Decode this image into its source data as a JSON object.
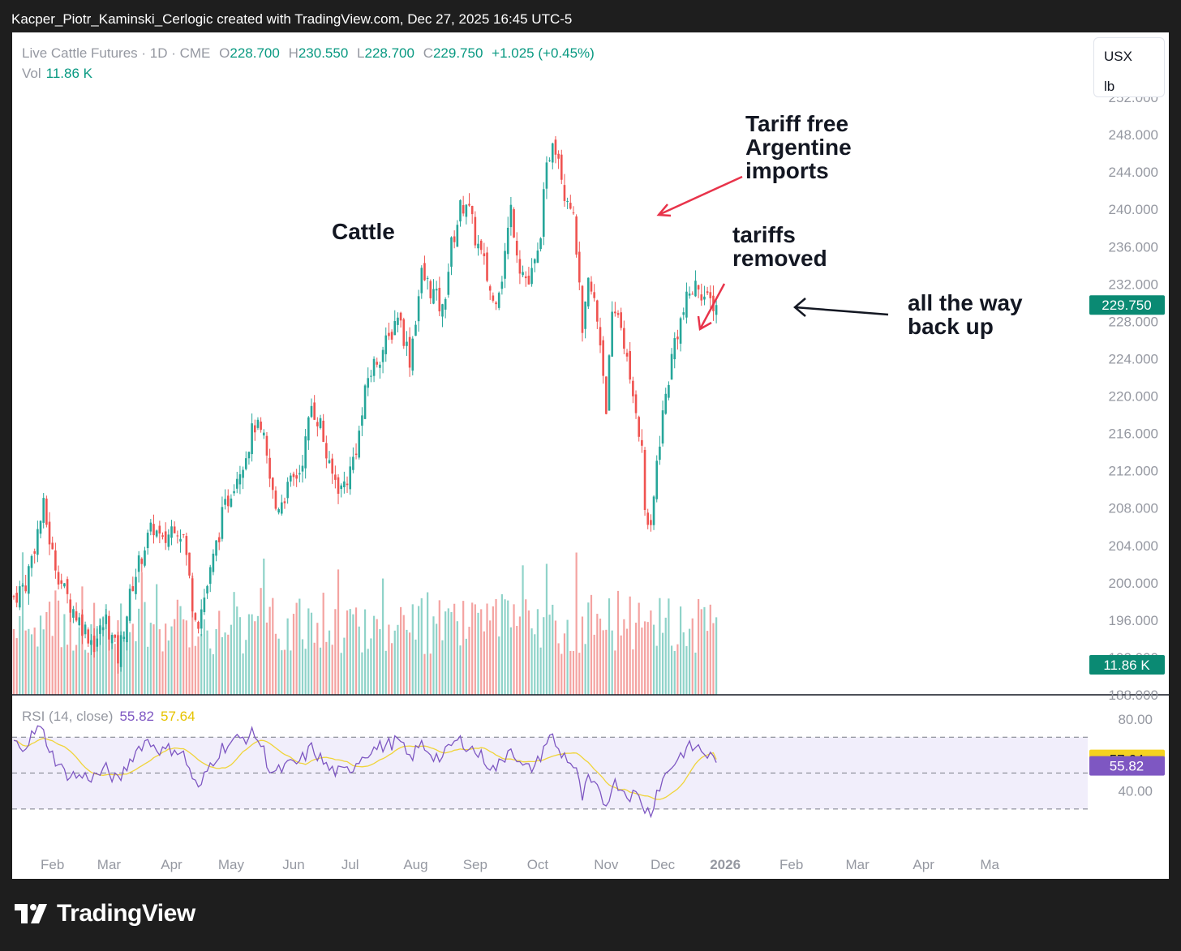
{
  "header_text": "Kacper_Piotr_Kaminski_Cerlogic created with TradingView.com, Dec 27, 2025 16:45 UTC-5",
  "legend": {
    "symbol": "Live Cattle Futures · 1D · CME",
    "o_label": "O",
    "o": "228.700",
    "h_label": "H",
    "h": "230.550",
    "l_label": "L",
    "l": "228.700",
    "c_label": "C",
    "c": "229.750",
    "change": "+1.025 (+0.45%)",
    "vol_label": "Vol",
    "vol": "11.86 K"
  },
  "unit_box": {
    "currency": "USX",
    "unit": "lb"
  },
  "price_axis": {
    "ticks": [
      "252.000",
      "248.000",
      "244.000",
      "240.000",
      "236.000",
      "232.000",
      "228.000",
      "224.000",
      "220.000",
      "216.000",
      "212.000",
      "208.000",
      "204.000",
      "200.000",
      "196.000",
      "192.000",
      "188.000"
    ],
    "last_price": "229.750",
    "last_volume": "11.86 K"
  },
  "rsi": {
    "label": "RSI (14, close)",
    "value": "55.82",
    "ma_value": "57.64",
    "ticks": [
      "80.00",
      "40.00"
    ]
  },
  "time_axis": [
    "Feb",
    "Mar",
    "Apr",
    "May",
    "Jun",
    "Jul",
    "Aug",
    "Sep",
    "Oct",
    "Nov",
    "Dec",
    "2026",
    "Feb",
    "Mar",
    "Apr",
    "Ma"
  ],
  "annotations": {
    "title": "Cattle",
    "argentine": [
      "Tariff free",
      "Argentine",
      "imports"
    ],
    "tariffs": [
      "tariffs",
      "removed"
    ],
    "backup": [
      "all the way",
      "back up"
    ]
  },
  "brand": "TradingView",
  "colors": {
    "up": "#26a69a",
    "down": "#ef5350",
    "rsi": "#7e57c2",
    "rsi_ma": "#f0d43a",
    "rsi_band": "#f1eefb",
    "arrow": "#e8334a"
  },
  "chart_data": {
    "type": "candlestick",
    "title": "Live Cattle Futures · 1D · CME",
    "ylim": [
      188,
      254
    ],
    "month_anchors": [
      {
        "label": "Feb",
        "day": 13
      },
      {
        "label": "Mar",
        "day": 32
      },
      {
        "label": "Apr",
        "day": 53
      },
      {
        "label": "May",
        "day": 73
      },
      {
        "label": "Jun",
        "day": 94
      },
      {
        "label": "Jul",
        "day": 113
      },
      {
        "label": "Aug",
        "day": 135
      },
      {
        "label": "Sep",
        "day": 155
      },
      {
        "label": "Oct",
        "day": 176
      },
      {
        "label": "Nov",
        "day": 199
      },
      {
        "label": "Dec",
        "day": 218
      },
      {
        "label": "2026",
        "day": 239
      }
    ],
    "close_path": [
      [
        0,
        198.5
      ],
      [
        4,
        200
      ],
      [
        8,
        205.5
      ],
      [
        10,
        208
      ],
      [
        13,
        203
      ],
      [
        17,
        199
      ],
      [
        22,
        196
      ],
      [
        27,
        193.5
      ],
      [
        31,
        196
      ],
      [
        35,
        192
      ],
      [
        40,
        200
      ],
      [
        44,
        204
      ],
      [
        47,
        206
      ],
      [
        50,
        204
      ],
      [
        54,
        206.5
      ],
      [
        57,
        205
      ],
      [
        60,
        198
      ],
      [
        62,
        196
      ],
      [
        66,
        201
      ],
      [
        70,
        207
      ],
      [
        74,
        211
      ],
      [
        78,
        214
      ],
      [
        81,
        217
      ],
      [
        84,
        215
      ],
      [
        86,
        211
      ],
      [
        88,
        208
      ],
      [
        92,
        210
      ],
      [
        96,
        212
      ],
      [
        98,
        215
      ],
      [
        100,
        219
      ],
      [
        103,
        217
      ],
      [
        106,
        212
      ],
      [
        110,
        210
      ],
      [
        113,
        212
      ],
      [
        116,
        216
      ],
      [
        119,
        222
      ],
      [
        122,
        224
      ],
      [
        126,
        226
      ],
      [
        129,
        229
      ],
      [
        133,
        224
      ],
      [
        137,
        233
      ],
      [
        141,
        231
      ],
      [
        144,
        229
      ],
      [
        147,
        236
      ],
      [
        150,
        240
      ],
      [
        152,
        241
      ],
      [
        155,
        237
      ],
      [
        158,
        234
      ],
      [
        161,
        230
      ],
      [
        164,
        233
      ],
      [
        167,
        240
      ],
      [
        170,
        234
      ],
      [
        173,
        232
      ],
      [
        176,
        235
      ],
      [
        179,
        244
      ],
      [
        181,
        248
      ],
      [
        183,
        246
      ],
      [
        185,
        242
      ],
      [
        187,
        241
      ],
      [
        189,
        236
      ],
      [
        191,
        226
      ],
      [
        193,
        232
      ],
      [
        195,
        230
      ],
      [
        197,
        226
      ],
      [
        199,
        219
      ],
      [
        201,
        228
      ],
      [
        203,
        229
      ],
      [
        205,
        226
      ],
      [
        207,
        221
      ],
      [
        209,
        219
      ],
      [
        211,
        214
      ],
      [
        212,
        208
      ],
      [
        214,
        205
      ],
      [
        216,
        213
      ],
      [
        218,
        218
      ],
      [
        220,
        222
      ],
      [
        222,
        226
      ],
      [
        225,
        229
      ],
      [
        227,
        231
      ],
      [
        230,
        232
      ],
      [
        233,
        230
      ],
      [
        235,
        230
      ],
      [
        236,
        229.75
      ]
    ],
    "rsi_path": [
      [
        0,
        66
      ],
      [
        4,
        66
      ],
      [
        8,
        75
      ],
      [
        10,
        72
      ],
      [
        13,
        60
      ],
      [
        17,
        50
      ],
      [
        22,
        48
      ],
      [
        27,
        48
      ],
      [
        31,
        52
      ],
      [
        35,
        45
      ],
      [
        40,
        60
      ],
      [
        44,
        68
      ],
      [
        47,
        66
      ],
      [
        50,
        62
      ],
      [
        54,
        64
      ],
      [
        57,
        60
      ],
      [
        60,
        48
      ],
      [
        62,
        40
      ],
      [
        66,
        55
      ],
      [
        70,
        64
      ],
      [
        74,
        68
      ],
      [
        78,
        70
      ],
      [
        81,
        72
      ],
      [
        84,
        62
      ],
      [
        86,
        52
      ],
      [
        88,
        50
      ],
      [
        92,
        54
      ],
      [
        96,
        56
      ],
      [
        98,
        60
      ],
      [
        100,
        64
      ],
      [
        103,
        58
      ],
      [
        106,
        52
      ],
      [
        110,
        50
      ],
      [
        113,
        52
      ],
      [
        116,
        58
      ],
      [
        119,
        62
      ],
      [
        122,
        64
      ],
      [
        126,
        66
      ],
      [
        129,
        68
      ],
      [
        133,
        58
      ],
      [
        137,
        66
      ],
      [
        141,
        60
      ],
      [
        144,
        58
      ],
      [
        147,
        66
      ],
      [
        150,
        68
      ],
      [
        152,
        66
      ],
      [
        155,
        62
      ],
      [
        158,
        58
      ],
      [
        161,
        52
      ],
      [
        164,
        56
      ],
      [
        167,
        66
      ],
      [
        170,
        54
      ],
      [
        173,
        52
      ],
      [
        176,
        56
      ],
      [
        179,
        68
      ],
      [
        181,
        70
      ],
      [
        183,
        62
      ],
      [
        185,
        60
      ],
      [
        187,
        56
      ],
      [
        189,
        50
      ],
      [
        191,
        36
      ],
      [
        193,
        46
      ],
      [
        195,
        42
      ],
      [
        197,
        38
      ],
      [
        199,
        32
      ],
      [
        201,
        44
      ],
      [
        203,
        44
      ],
      [
        205,
        40
      ],
      [
        207,
        38
      ],
      [
        209,
        38
      ],
      [
        211,
        34
      ],
      [
        212,
        30
      ],
      [
        214,
        28
      ],
      [
        216,
        40
      ],
      [
        218,
        46
      ],
      [
        220,
        52
      ],
      [
        222,
        56
      ],
      [
        225,
        62
      ],
      [
        227,
        64
      ],
      [
        230,
        64
      ],
      [
        233,
        60
      ],
      [
        235,
        58
      ],
      [
        236,
        55.82
      ]
    ]
  }
}
